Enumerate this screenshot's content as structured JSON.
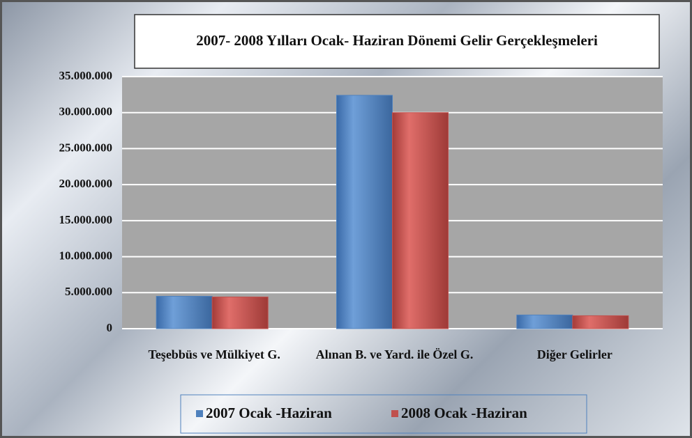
{
  "chart_data": {
    "type": "bar",
    "title": "2007- 2008 Yılları Ocak- Haziran Dönemi Gelir Gerçekleşmeleri",
    "categories": [
      "Teşebbüs ve Mülkiyet G.",
      "Alınan B. ve Yard. ile Özel G.",
      "Diğer Gelirler"
    ],
    "series": [
      {
        "name": "2007 Ocak -Haziran",
        "color": "#4f81bd",
        "values": [
          4500000,
          32400000,
          1900000
        ]
      },
      {
        "name": "2008 Ocak -Haziran",
        "color": "#c0504d",
        "values": [
          4400000,
          30000000,
          1800000
        ]
      }
    ],
    "ylim": [
      0,
      35000000
    ],
    "yticks": [
      0,
      {
        "value": 5000000,
        "label": "5.000.000"
      },
      {
        "value": 10000000,
        "label": "10.000.000"
      },
      {
        "value": 15000000,
        "label": "15.000.000"
      },
      {
        "value": 20000000,
        "label": "20.000.000"
      },
      {
        "value": 25000000,
        "label": "25.000.000"
      },
      {
        "value": 30000000,
        "label": "30.000.000"
      },
      {
        "value": 35000000,
        "label": "35.000.000"
      }
    ],
    "grid": true,
    "legend": "bottom"
  }
}
